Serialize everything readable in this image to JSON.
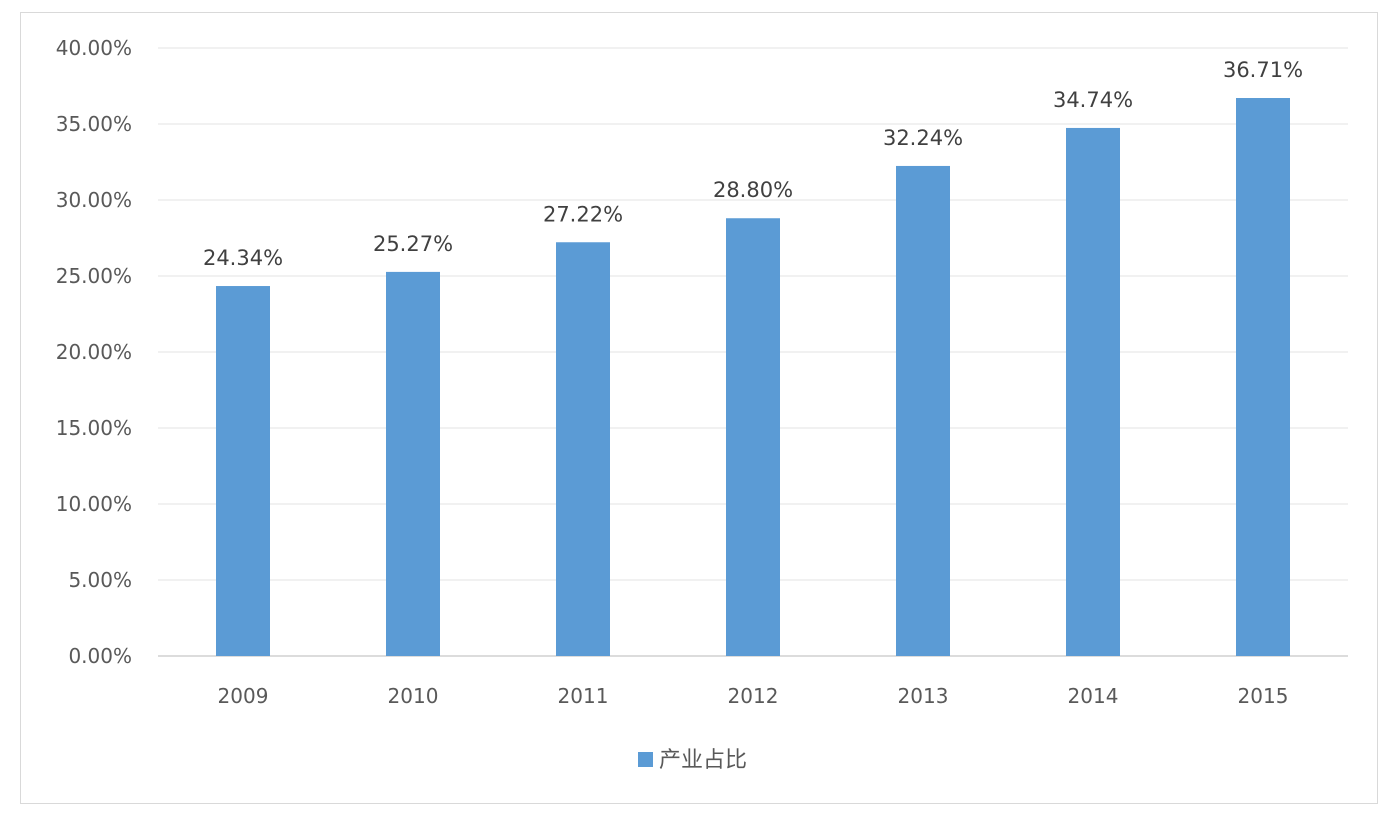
{
  "chart_data": {
    "type": "bar",
    "categories": [
      "2009",
      "2010",
      "2011",
      "2012",
      "2013",
      "2014",
      "2015"
    ],
    "series": [
      {
        "name": "产业占比",
        "values": [
          24.34,
          25.27,
          27.22,
          28.8,
          32.24,
          34.74,
          36.71
        ],
        "labels": [
          "24.34%",
          "25.27%",
          "27.22%",
          "28.80%",
          "32.24%",
          "34.74%",
          "36.71%"
        ]
      }
    ],
    "y_ticks": [
      "0.00%",
      "5.00%",
      "10.00%",
      "15.00%",
      "20.00%",
      "25.00%",
      "30.00%",
      "35.00%",
      "40.00%"
    ],
    "ylim": [
      0,
      40
    ],
    "grid": true,
    "legend_position": "bottom",
    "bar_color": "#5b9bd5",
    "grid_color": "#e3e3e3",
    "axis_color": "#d0d0d0"
  }
}
